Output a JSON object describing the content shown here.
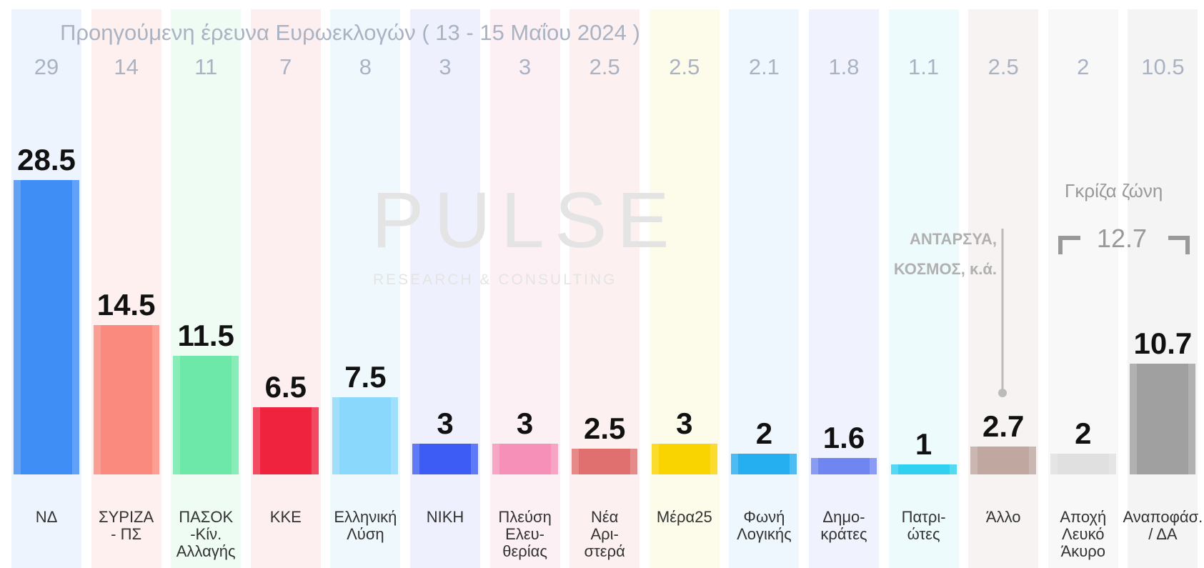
{
  "chart_data": {
    "type": "bar",
    "title": "Προηγούμενη έρευνα Ευρωεκλογών ( 13 - 15 Μαΐου 2024 )",
    "categories": [
      "ΝΔ",
      "ΣΥΡΙΖΑ\n- ΠΣ",
      "ΠΑΣΟΚ\n-Κίν.\nΑλλαγής",
      "ΚΚΕ",
      "Ελληνική\nΛύση",
      "ΝΙΚΗ",
      "Πλεύση\nΕλευ-\nθερίας",
      "Νέα\nΑρι-\nστερά",
      "Μέρα25",
      "Φωνή\nΛογικής",
      "Δημο-\nκράτες",
      "Πατρι-\nώτες",
      "Άλλο",
      "Αποχή\nΛευκό\nΆκυρο",
      "Αναποφάσ.\n/ ΔΑ"
    ],
    "values": [
      28.5,
      14.5,
      11.5,
      6.5,
      7.5,
      3,
      3,
      2.5,
      3,
      2,
      1.6,
      1,
      2.7,
      2,
      10.7
    ],
    "previous_values": [
      29,
      14,
      11,
      7,
      8,
      3,
      3,
      2.5,
      2.5,
      2.1,
      1.8,
      1.1,
      2.5,
      2,
      10.5
    ],
    "colors": [
      "#3f8ef5",
      "#fa8a7e",
      "#6ee8a8",
      "#f0233f",
      "#8ad8fb",
      "#3d5cf5",
      "#f790b8",
      "#e07070",
      "#fad400",
      "#25aef0",
      "#6f85f0",
      "#30d0f0",
      "#c0a8a0",
      "#e0e0e0",
      "#a0a0a0"
    ],
    "background_colors": [
      "#eef4fd",
      "#fdf0ef",
      "#eefcf3",
      "#fdeef0",
      "#eff8fd",
      "#eef0fd",
      "#fdf0f5",
      "#fcf0f0",
      "#fdfbea",
      "#eef7fd",
      "#f0f2fd",
      "#eefbfd",
      "#f6f3f2",
      "#f8f8f8",
      "#f4f4f4"
    ],
    "annotation": "ΑΝΤΑΡΣΥΑ,\nΚΟΣΜΟΣ,  κ.ά.",
    "gray_zone_label": "Γκρίζα ζώνη",
    "gray_zone_value": 12.7,
    "watermark": "PULSE",
    "watermark_subtitle": "RESEARCH & CONSULTING"
  }
}
